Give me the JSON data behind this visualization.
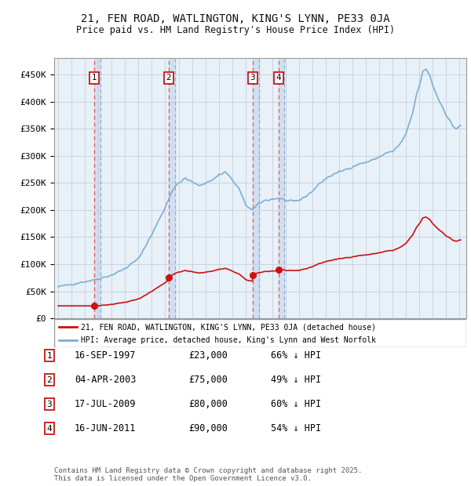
{
  "title": "21, FEN ROAD, WATLINGTON, KING'S LYNN, PE33 0JA",
  "subtitle": "Price paid vs. HM Land Registry's House Price Index (HPI)",
  "background_color": "#ffffff",
  "plot_bg_color": "#e8f0f8",
  "grid_color": "#c0c8d8",
  "hpi_color": "#7bafd4",
  "price_color": "#cc1111",
  "sale_marker_color": "#cc1111",
  "legend_line_red": "#cc1111",
  "legend_line_blue": "#7bafd4",
  "legend_label_red": "21, FEN ROAD, WATLINGTON, KING'S LYNN, PE33 0JA (detached house)",
  "legend_label_blue": "HPI: Average price, detached house, King's Lynn and West Norfolk",
  "footer": "Contains HM Land Registry data © Crown copyright and database right 2025.\nThis data is licensed under the Open Government Licence v3.0.",
  "transactions": [
    {
      "num": 1,
      "date": "16-SEP-1997",
      "price": 23000,
      "pct": "66%",
      "direction": "↓",
      "x_year": 1997.71
    },
    {
      "num": 2,
      "date": "04-APR-2003",
      "price": 75000,
      "pct": "49%",
      "direction": "↓",
      "x_year": 2003.26
    },
    {
      "num": 3,
      "date": "17-JUL-2009",
      "price": 80000,
      "pct": "60%",
      "direction": "↓",
      "x_year": 2009.54
    },
    {
      "num": 4,
      "date": "16-JUN-2011",
      "price": 90000,
      "pct": "54%",
      "direction": "↓",
      "x_year": 2011.46
    }
  ],
  "ylim": [
    0,
    480000
  ],
  "yticks": [
    0,
    50000,
    100000,
    150000,
    200000,
    250000,
    300000,
    350000,
    400000,
    450000
  ],
  "ytick_labels": [
    "£0",
    "£50K",
    "£100K",
    "£150K",
    "£200K",
    "£250K",
    "£300K",
    "£350K",
    "£400K",
    "£450K"
  ],
  "xlim": [
    1994.7,
    2025.5
  ],
  "xticks": [
    1995,
    1996,
    1997,
    1998,
    1999,
    2000,
    2001,
    2002,
    2003,
    2004,
    2005,
    2006,
    2007,
    2008,
    2009,
    2010,
    2011,
    2012,
    2013,
    2014,
    2015,
    2016,
    2017,
    2018,
    2019,
    2020,
    2021,
    2022,
    2023,
    2024,
    2025
  ],
  "shade_color": "#ccddf0",
  "vline_color": "#ee5555",
  "vline2_color": "#88aacc"
}
